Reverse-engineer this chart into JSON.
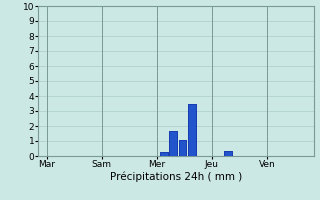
{
  "title": "",
  "xlabel": "Précipitations 24h ( mm )",
  "ylabel": "",
  "ylim": [
    0,
    10
  ],
  "yticks": [
    0,
    1,
    2,
    3,
    4,
    5,
    6,
    7,
    8,
    9,
    10
  ],
  "background_color": "#cce8e4",
  "grid_color": "#aaccc8",
  "bar_color": "#2255cc",
  "bar_edge_color": "#1133aa",
  "x_tick_labels": [
    "Mar",
    "Sam",
    "Mer",
    "Jeu",
    "Ven"
  ],
  "x_tick_positions": [
    0,
    1,
    2,
    3,
    4
  ],
  "xlim": [
    -0.15,
    4.85
  ],
  "bars": [
    {
      "x": 2.13,
      "height": 0.28
    },
    {
      "x": 2.3,
      "height": 1.7
    },
    {
      "x": 2.47,
      "height": 1.05
    },
    {
      "x": 2.64,
      "height": 3.5
    },
    {
      "x": 3.3,
      "height": 0.35
    }
  ],
  "bar_width": 0.14
}
